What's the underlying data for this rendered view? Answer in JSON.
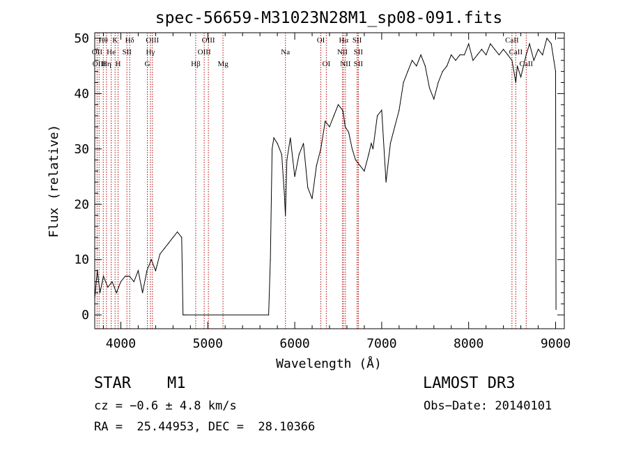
{
  "chart_data": {
    "type": "line",
    "title": "spec-56659-M31023N28M1_sp08-091.fits",
    "xlabel": "Wavelength (Å)",
    "ylabel": "Flux (relative)",
    "xlim": [
      3700,
      9100
    ],
    "ylim": [
      -2.5,
      51
    ],
    "xticks": [
      4000,
      5000,
      6000,
      7000,
      8000,
      9000
    ],
    "yticks": [
      0,
      10,
      20,
      30,
      40,
      50
    ],
    "grid": false,
    "series": [
      {
        "name": "flux",
        "x": [
          3700,
          3730,
          3760,
          3800,
          3850,
          3900,
          3950,
          4000,
          4050,
          4100,
          4150,
          4200,
          4250,
          4300,
          4350,
          4400,
          4450,
          4500,
          4550,
          4600,
          4650,
          4700,
          4715,
          4730,
          4750,
          5700,
          5720,
          5740,
          5760,
          5800,
          5850,
          5880,
          5893,
          5910,
          5950,
          6000,
          6050,
          6100,
          6150,
          6200,
          6250,
          6300,
          6350,
          6400,
          6450,
          6500,
          6550,
          6563,
          6580,
          6620,
          6660,
          6700,
          6750,
          6800,
          6850,
          6880,
          6900,
          6950,
          7000,
          7050,
          7100,
          7150,
          7200,
          7250,
          7300,
          7350,
          7400,
          7450,
          7500,
          7550,
          7600,
          7650,
          7700,
          7750,
          7800,
          7850,
          7900,
          7950,
          8000,
          8050,
          8100,
          8150,
          8200,
          8250,
          8300,
          8350,
          8400,
          8450,
          8498,
          8542,
          8560,
          8600,
          8662,
          8700,
          8750,
          8800,
          8850,
          8900,
          8950,
          8980,
          9000,
          9005
        ],
        "y": [
          3,
          8,
          4,
          7,
          5,
          6,
          4,
          6,
          7,
          7,
          6,
          8,
          4,
          8,
          10,
          8,
          11,
          12,
          13,
          14,
          15,
          14,
          0,
          0,
          0,
          0,
          10,
          30,
          32,
          31,
          29,
          22,
          18,
          28,
          32,
          25,
          29,
          31,
          23,
          21,
          27,
          30,
          35,
          34,
          36,
          38,
          37,
          36,
          34,
          33,
          30,
          28,
          27,
          26,
          29,
          31,
          30,
          36,
          37,
          24,
          31,
          34,
          37,
          42,
          44,
          46,
          45,
          47,
          45,
          41,
          39,
          42,
          44,
          45,
          47,
          46,
          47,
          47,
          49,
          46,
          47,
          48,
          47,
          49,
          48,
          47,
          48,
          47,
          46,
          42,
          45,
          43,
          47,
          49,
          46,
          48,
          47,
          50,
          49,
          46,
          44,
          1
        ]
      }
    ],
    "lines": [
      {
        "label": "Hθ",
        "x": 3798,
        "row": 0
      },
      {
        "label": "OII",
        "x": 3727,
        "row": 1
      },
      {
        "label": "OIII",
        "x": 3750,
        "row": 2
      },
      {
        "label": "Hη",
        "x": 3835,
        "row": 2
      },
      {
        "label": "He",
        "x": 3889,
        "row": 1
      },
      {
        "label": "K",
        "x": 3934,
        "row": 0
      },
      {
        "label": "H",
        "x": 3968,
        "row": 2
      },
      {
        "label": "SII",
        "x": 4070,
        "row": 1
      },
      {
        "label": "Hδ",
        "x": 4102,
        "row": 0
      },
      {
        "label": "OIII",
        "x": 4363,
        "row": 0
      },
      {
        "label": "Hγ",
        "x": 4340,
        "row": 1
      },
      {
        "label": "G",
        "x": 4305,
        "row": 2
      },
      {
        "label": "Hβ",
        "x": 4861,
        "row": 2
      },
      {
        "label": "OIII",
        "x": 5007,
        "row": 0
      },
      {
        "label": "OIII",
        "x": 4959,
        "row": 1
      },
      {
        "label": "Mg",
        "x": 5175,
        "row": 2
      },
      {
        "label": "Na",
        "x": 5893,
        "row": 1
      },
      {
        "label": "OI",
        "x": 6300,
        "row": 0
      },
      {
        "label": "OI",
        "x": 6363,
        "row": 2
      },
      {
        "label": "Hα",
        "x": 6563,
        "row": 0
      },
      {
        "label": "NII",
        "x": 6548,
        "row": 1
      },
      {
        "label": "NII",
        "x": 6583,
        "row": 2
      },
      {
        "label": "SII",
        "x": 6717,
        "row": 0
      },
      {
        "label": "SII",
        "x": 6731,
        "row": 1
      },
      {
        "label": "SII",
        "x": 6731,
        "row": 2
      },
      {
        "label": "CaII",
        "x": 8498,
        "row": 0
      },
      {
        "label": "CaII",
        "x": 8542,
        "row": 1
      },
      {
        "label": "CaII",
        "x": 8662,
        "row": 2
      }
    ]
  },
  "info": {
    "obj_class": "STAR",
    "obj_subclass": "M1",
    "survey": "LAMOST DR3",
    "cz": "cz = −0.6 ± 4.8 km/s",
    "obs_date": "Obs−Date: 20140101",
    "radec": "RA =  25.44953, DEC =  28.10366"
  }
}
